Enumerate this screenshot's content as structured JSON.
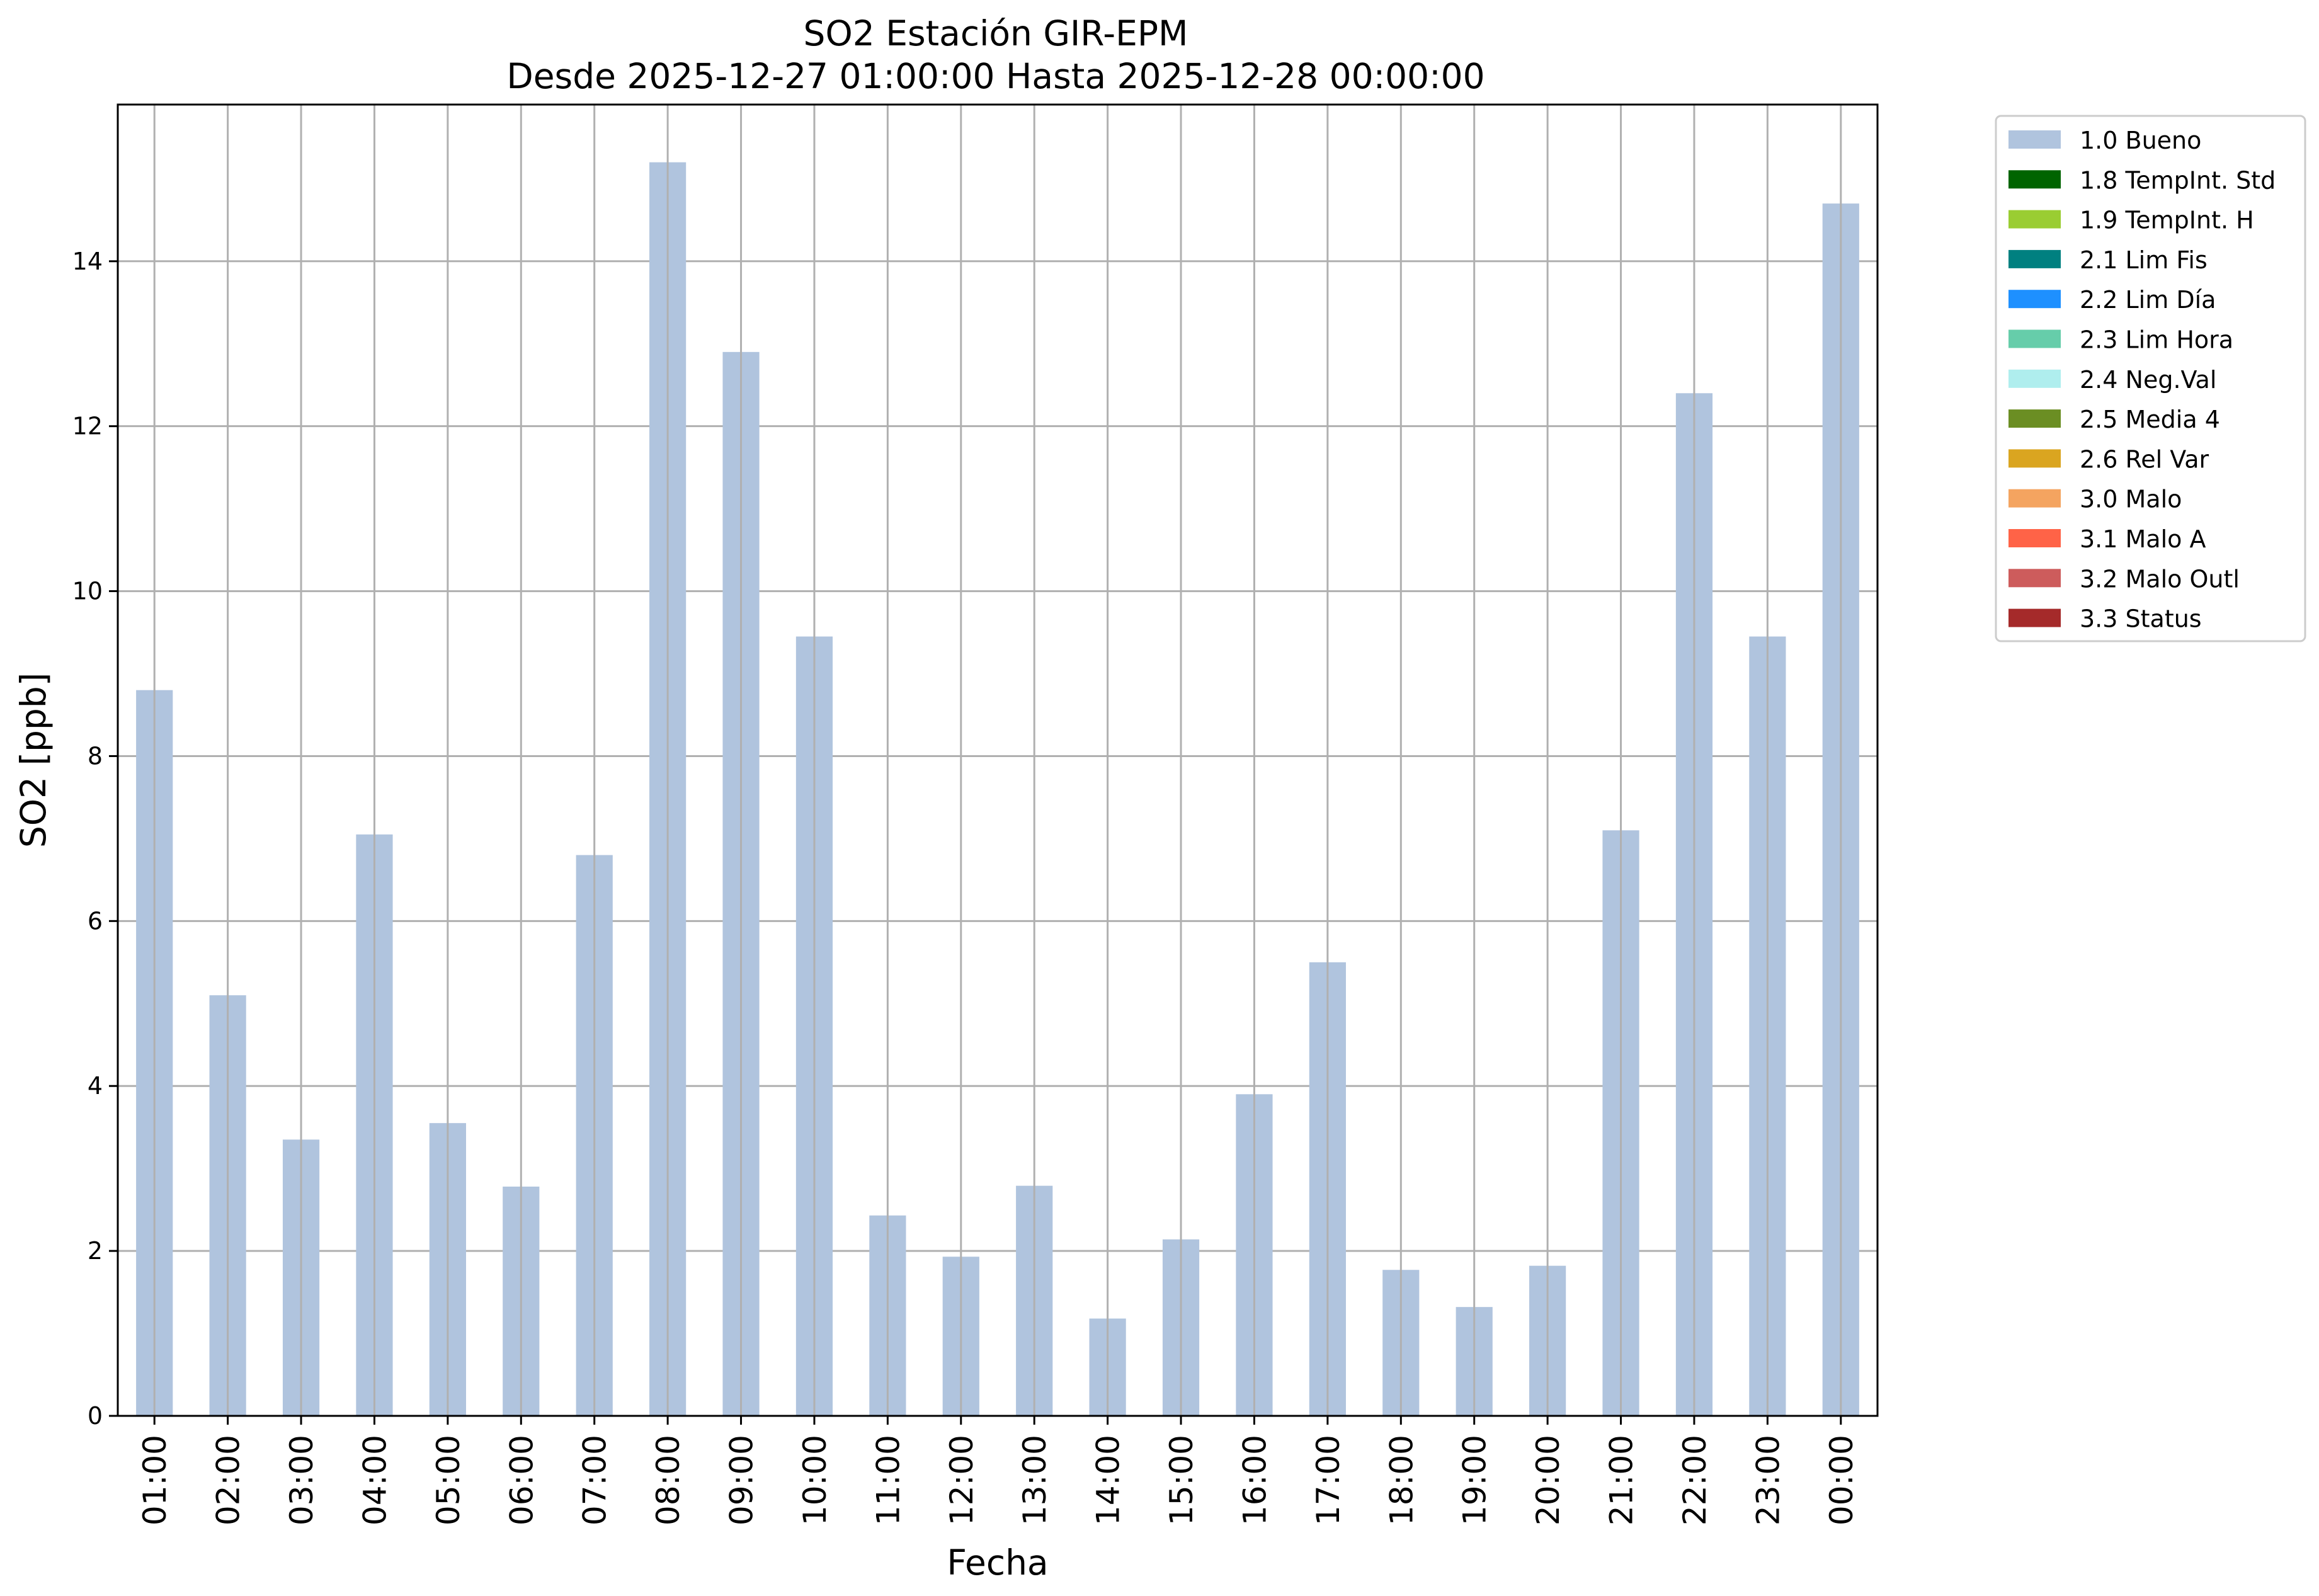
{
  "chart_data": {
    "type": "bar",
    "title": "SO2 Estación GIR-EPM",
    "subtitle": "Desde 2025-12-27 01:00:00 Hasta 2025-12-28 00:00:00",
    "xlabel": "Fecha",
    "ylabel": "SO2 [ppb]",
    "ylim": [
      0,
      15.9
    ],
    "yticks": [
      0,
      2,
      4,
      6,
      8,
      10,
      12,
      14
    ],
    "grid": true,
    "legend_position": "outside-top-right",
    "categories": [
      "01:00",
      "02:00",
      "03:00",
      "04:00",
      "05:00",
      "06:00",
      "07:00",
      "08:00",
      "09:00",
      "10:00",
      "11:00",
      "12:00",
      "13:00",
      "14:00",
      "15:00",
      "16:00",
      "17:00",
      "18:00",
      "19:00",
      "20:00",
      "21:00",
      "22:00",
      "23:00",
      "00:00"
    ],
    "series": [
      {
        "name": "1.0 Bueno",
        "color": "#b0c4de",
        "values": [
          8.8,
          5.1,
          3.35,
          7.05,
          3.55,
          2.78,
          6.8,
          15.2,
          12.9,
          9.45,
          2.43,
          1.93,
          2.79,
          1.18,
          2.14,
          3.9,
          5.5,
          1.77,
          1.32,
          1.82,
          7.1,
          12.4,
          9.45,
          14.7
        ]
      }
    ],
    "legend": [
      {
        "label": "1.0 Bueno",
        "color": "#b0c4de"
      },
      {
        "label": "1.8 TempInt. Std",
        "color": "#006400"
      },
      {
        "label": "1.9 TempInt. H",
        "color": "#9acd32"
      },
      {
        "label": "2.1 Lim Fis",
        "color": "#008080"
      },
      {
        "label": "2.2 Lim Día",
        "color": "#1e90ff"
      },
      {
        "label": "2.3 Lim Hora",
        "color": "#66cdaa"
      },
      {
        "label": "2.4 Neg.Val",
        "color": "#afeeee"
      },
      {
        "label": "2.5 Media 4",
        "color": "#6b8e23"
      },
      {
        "label": "2.6 Rel Var",
        "color": "#daa520"
      },
      {
        "label": "3.0 Malo",
        "color": "#f4a460"
      },
      {
        "label": "3.1 Malo A",
        "color": "#ff6347"
      },
      {
        "label": "3.2 Malo Outl",
        "color": "#cd5c5c"
      },
      {
        "label": "3.3 Status",
        "color": "#a52a2a"
      }
    ]
  }
}
